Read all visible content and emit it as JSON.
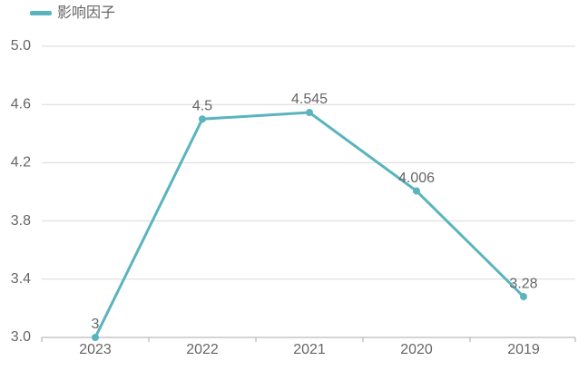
{
  "chart_data": {
    "type": "line",
    "categories": [
      "2023",
      "2022",
      "2021",
      "2020",
      "2019"
    ],
    "series": [
      {
        "name": "影响因子",
        "color": "#5ab4be",
        "values": [
          3,
          4.5,
          4.545,
          4.006,
          3.28
        ]
      }
    ],
    "ylim": [
      3.0,
      5.0
    ],
    "yticks": [
      {
        "value": 3.0,
        "label": "3.0"
      },
      3.4,
      3.8,
      4.2,
      4.6,
      {
        "value": 5.0,
        "label": "5.0"
      }
    ],
    "grid": true,
    "legend": "top-left"
  }
}
